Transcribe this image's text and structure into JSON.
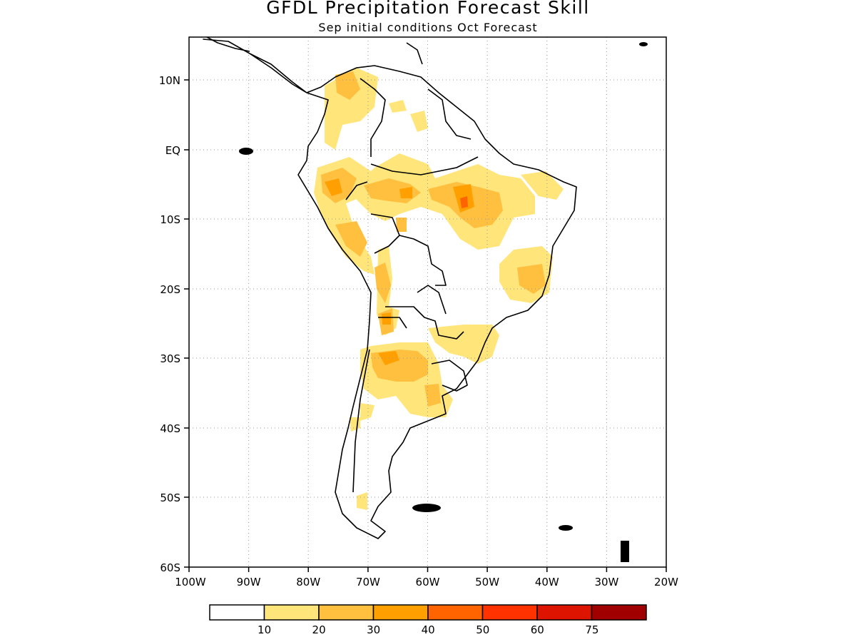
{
  "title": "GFDL Precipitation Forecast Skill",
  "subtitle": "Sep initial conditions  Oct Forecast",
  "map": {
    "lon_range": [
      -100,
      -20
    ],
    "lat_range": [
      -60,
      15
    ],
    "lat_ticks": [
      "10N",
      "EQ",
      "10S",
      "20S",
      "30S",
      "40S",
      "50S",
      "60S"
    ],
    "lon_ticks": [
      "100W",
      "90W",
      "80W",
      "70W",
      "60W",
      "50W",
      "40W",
      "30W",
      "20W"
    ],
    "gridlines": "dotted",
    "region": "South America"
  },
  "colorbar": {
    "labels": [
      "10",
      "20",
      "30",
      "40",
      "50",
      "60",
      "75"
    ],
    "colors": [
      "#ffffff",
      "#ffe57a",
      "#ffc040",
      "#ffa000",
      "#ff6400",
      "#ff3200",
      "#dc1400",
      "#a00000"
    ]
  }
}
